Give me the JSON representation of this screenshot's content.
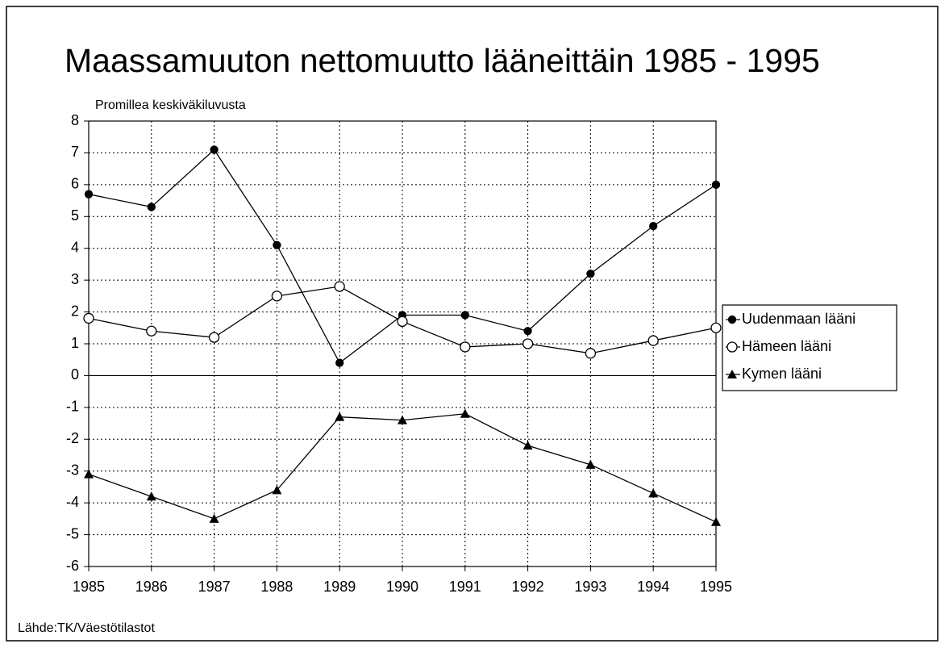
{
  "chart_data": {
    "type": "line",
    "title": "Maassamuuton nettomuutto lääneittäin 1985 - 1995",
    "y_label": "Promillea keskiväkiluvusta",
    "source": "Lähde:TK/Väestötilastot",
    "x": [
      1985,
      1986,
      1987,
      1988,
      1989,
      1990,
      1991,
      1992,
      1993,
      1994,
      1995
    ],
    "xlim": [
      1985,
      1995
    ],
    "xticks": [
      1985,
      1986,
      1987,
      1988,
      1989,
      1990,
      1991,
      1992,
      1993,
      1994,
      1995
    ],
    "ylim": [
      -6,
      8
    ],
    "yticks": [
      -6,
      -5,
      -4,
      -3,
      -2,
      -1,
      0,
      1,
      2,
      3,
      4,
      5,
      6,
      7,
      8
    ],
    "grid": true,
    "legend": "right",
    "series": [
      {
        "name": "Uudenmaan lääni",
        "color": "#000000",
        "marker": "filled-circle",
        "values": [
          5.7,
          5.3,
          7.1,
          4.1,
          0.4,
          1.9,
          1.9,
          1.4,
          3.2,
          4.7,
          6.0
        ]
      },
      {
        "name": "Hämeen lääni",
        "color": "#000000",
        "marker": "open-circle",
        "values": [
          1.8,
          1.4,
          1.2,
          2.5,
          2.8,
          1.7,
          0.9,
          1.0,
          0.7,
          1.1,
          1.5
        ]
      },
      {
        "name": "Kymen lääni",
        "color": "#000000",
        "marker": "triangle",
        "values": [
          -3.1,
          -3.8,
          -4.5,
          -3.6,
          -1.3,
          -1.4,
          -1.2,
          -2.2,
          -2.8,
          -3.7,
          -4.6
        ]
      }
    ]
  }
}
